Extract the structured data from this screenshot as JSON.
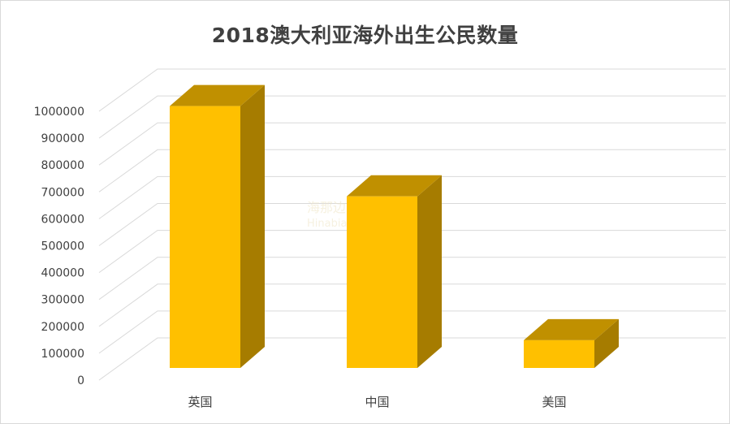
{
  "chart_data": {
    "type": "bar",
    "title": "2018澳大利亚海外出生公民数量",
    "categories": [
      "英国",
      "中国",
      "美国"
    ],
    "values": [
      992000,
      650000,
      105000
    ],
    "ylim": [
      0,
      1000000
    ],
    "yticks": [
      0,
      100000,
      200000,
      300000,
      400000,
      500000,
      600000,
      700000,
      800000,
      900000,
      1000000
    ],
    "grid": true,
    "legend": "none",
    "bar_style": "3d",
    "colors": {
      "front": "#ffc000",
      "top": "#c09000",
      "side": "#a67c00",
      "grid": "#d9d9d9"
    }
  },
  "watermark": {
    "line1": "海那边",
    "line2": "Hinabian"
  }
}
